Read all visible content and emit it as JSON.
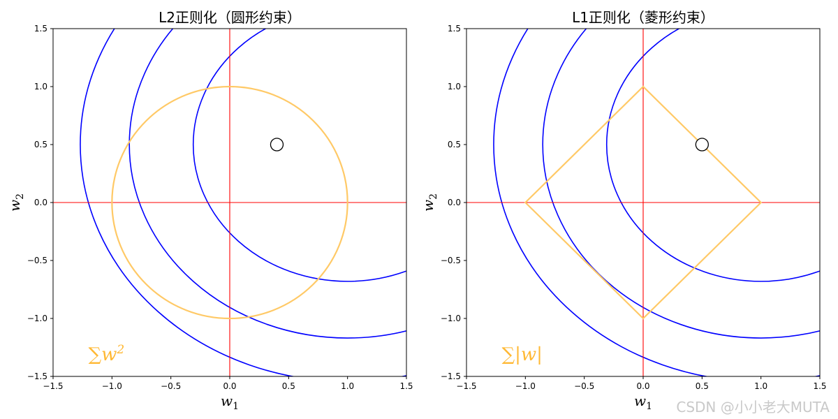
{
  "chart_data": [
    {
      "type": "line",
      "title": "L2正则化（圆形约束）",
      "xlabel_base": "w",
      "xlabel_sub": "1",
      "ylabel_base": "w",
      "ylabel_sub": "2",
      "xlim": [
        -1.5,
        1.5
      ],
      "ylim": [
        -1.5,
        1.5
      ],
      "xticks": [
        -1.5,
        -1.0,
        -0.5,
        0.0,
        0.5,
        1.0,
        1.5
      ],
      "yticks": [
        -1.5,
        -1.0,
        -0.5,
        0.0,
        0.5,
        1.0,
        1.5
      ],
      "xtick_labels": [
        "−1.5",
        "−1.0",
        "−0.5",
        "0.0",
        "0.5",
        "1.0",
        "1.5"
      ],
      "ytick_labels": [
        "−1.5",
        "−1.0",
        "−0.5",
        "0.0",
        "0.5",
        "1.0",
        "1.5"
      ],
      "constraint": {
        "shape": "circle",
        "radius": 1.0,
        "color": "#ffc966"
      },
      "contours": {
        "center": [
          1.0,
          0.5
        ],
        "a": 1.31,
        "b": 1.18,
        "levels": [
          1.0,
          2.0,
          3.0
        ],
        "color": "#0000ff"
      },
      "optimum_marker": {
        "x": 0.4,
        "y": 0.5
      },
      "axis_lines_color": "#ff0000",
      "annotation": {
        "base": "∑w",
        "sup": "2",
        "x": -1.2,
        "y": -1.3,
        "color": "#ffb833"
      }
    },
    {
      "type": "line",
      "title": "L1正则化（菱形约束）",
      "xlabel_base": "w",
      "xlabel_sub": "1",
      "ylabel_base": "w",
      "ylabel_sub": "2",
      "xlim": [
        -1.5,
        1.5
      ],
      "ylim": [
        -1.5,
        1.5
      ],
      "xticks": [
        -1.5,
        -1.0,
        -0.5,
        0.0,
        0.5,
        1.0,
        1.5
      ],
      "yticks": [
        -1.5,
        -1.0,
        -0.5,
        0.0,
        0.5,
        1.0,
        1.5
      ],
      "xtick_labels": [
        "−1.5",
        "−1.0",
        "−0.5",
        "0.0",
        "0.5",
        "1.0",
        "1.5"
      ],
      "ytick_labels": [
        "−1.5",
        "−1.0",
        "−0.5",
        "0.0",
        "0.5",
        "1.0",
        "1.5"
      ],
      "constraint": {
        "shape": "diamond",
        "radius": 1.0,
        "color": "#ffc966"
      },
      "contours": {
        "center": [
          1.0,
          0.5
        ],
        "a": 1.31,
        "b": 1.18,
        "levels": [
          1.0,
          2.0,
          3.0
        ],
        "color": "#0000ff"
      },
      "optimum_marker": {
        "x": 0.5,
        "y": 0.5
      },
      "axis_lines_color": "#ff0000",
      "annotation": {
        "base": "∑|w|",
        "sup": "",
        "x": -1.2,
        "y": -1.3,
        "color": "#ffb833"
      }
    }
  ],
  "watermark": "CSDN @小小老大MUTA"
}
